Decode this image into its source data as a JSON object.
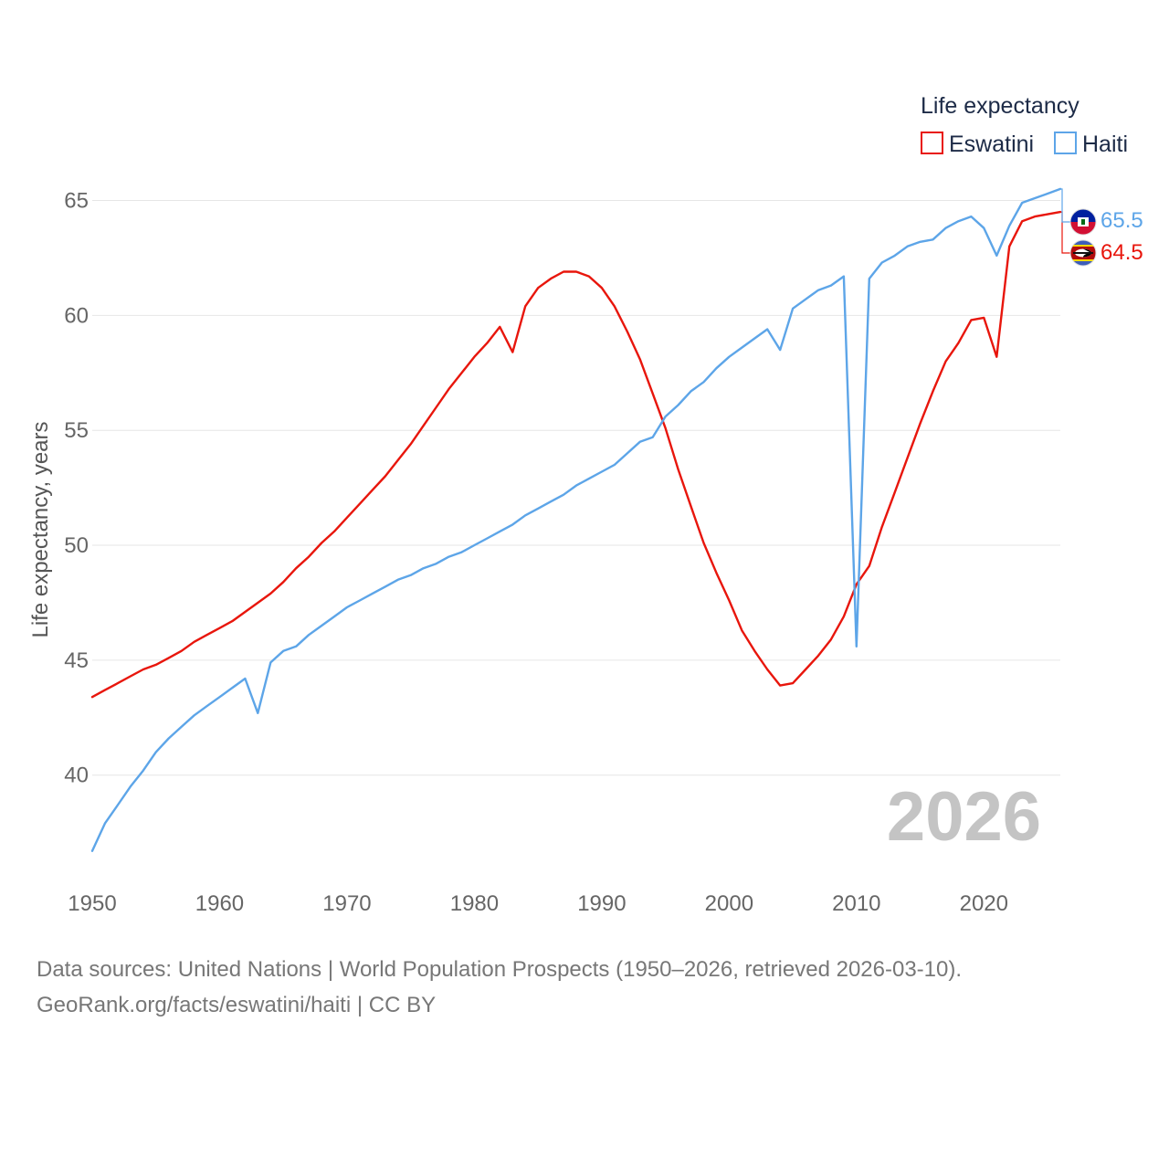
{
  "chart_data": {
    "type": "line",
    "title": "",
    "legend_title": "Life expectancy",
    "ylabel": "Life expectancy, years",
    "xlabel": "",
    "xlim": [
      1950,
      2026
    ],
    "ylim": [
      35.5,
      68
    ],
    "x_ticks": [
      1950,
      1960,
      1970,
      1980,
      1990,
      2000,
      2010,
      2020
    ],
    "y_ticks": [
      40,
      45,
      50,
      55,
      60,
      65
    ],
    "current_year_label": "2026",
    "x": [
      1950,
      1951,
      1952,
      1953,
      1954,
      1955,
      1956,
      1957,
      1958,
      1959,
      1960,
      1961,
      1962,
      1963,
      1964,
      1965,
      1966,
      1967,
      1968,
      1969,
      1970,
      1971,
      1972,
      1973,
      1974,
      1975,
      1976,
      1977,
      1978,
      1979,
      1980,
      1981,
      1982,
      1983,
      1984,
      1985,
      1986,
      1987,
      1988,
      1989,
      1990,
      1991,
      1992,
      1993,
      1994,
      1995,
      1996,
      1997,
      1998,
      1999,
      2000,
      2001,
      2002,
      2003,
      2004,
      2005,
      2006,
      2007,
      2008,
      2009,
      2010,
      2011,
      2012,
      2013,
      2014,
      2015,
      2016,
      2017,
      2018,
      2019,
      2020,
      2021,
      2022,
      2023,
      2024,
      2025,
      2026
    ],
    "series": [
      {
        "name": "Eswatini",
        "color": "#e8160c",
        "end_label": "64.5",
        "values": [
          43.4,
          43.7,
          44.0,
          44.3,
          44.6,
          44.8,
          45.1,
          45.4,
          45.8,
          46.1,
          46.4,
          46.7,
          47.1,
          47.5,
          47.9,
          48.4,
          49.0,
          49.5,
          50.1,
          50.6,
          51.2,
          51.8,
          52.4,
          53.0,
          53.7,
          54.4,
          55.2,
          56.0,
          56.8,
          57.5,
          58.2,
          58.8,
          59.5,
          58.4,
          60.4,
          61.2,
          61.6,
          61.9,
          61.9,
          61.7,
          61.2,
          60.4,
          59.3,
          58.1,
          56.6,
          55.1,
          53.3,
          51.7,
          50.1,
          48.8,
          47.6,
          46.3,
          45.4,
          44.6,
          43.9,
          44.0,
          44.6,
          45.2,
          45.9,
          46.9,
          48.3,
          49.1,
          50.8,
          52.3,
          53.8,
          55.3,
          56.7,
          58.0,
          58.8,
          59.8,
          59.9,
          58.2,
          63.0,
          64.1,
          64.3,
          64.4,
          64.5
        ]
      },
      {
        "name": "Haiti",
        "color": "#5da5e8",
        "end_label": "65.5",
        "values": [
          36.7,
          37.9,
          38.7,
          39.5,
          40.2,
          41.0,
          41.6,
          42.1,
          42.6,
          43.0,
          43.4,
          43.8,
          44.2,
          42.7,
          44.9,
          45.4,
          45.6,
          46.1,
          46.5,
          46.9,
          47.3,
          47.6,
          47.9,
          48.2,
          48.5,
          48.7,
          49.0,
          49.2,
          49.5,
          49.7,
          50.0,
          50.3,
          50.6,
          50.9,
          51.3,
          51.6,
          51.9,
          52.2,
          52.6,
          52.9,
          53.2,
          53.5,
          54.0,
          54.5,
          54.7,
          55.6,
          56.1,
          56.7,
          57.1,
          57.7,
          58.2,
          58.6,
          59.0,
          59.4,
          58.5,
          60.3,
          60.7,
          61.1,
          61.3,
          61.7,
          45.6,
          61.6,
          62.3,
          62.6,
          63.0,
          63.2,
          63.3,
          63.8,
          64.1,
          64.3,
          63.8,
          62.6,
          63.9,
          64.9,
          65.1,
          65.3,
          65.5
        ]
      }
    ]
  },
  "footer": {
    "source_line": "Data sources: United Nations | World Population Prospects (1950–2026, retrieved 2026-03-10).",
    "credit_line": "GeoRank.org/facts/eswatini/haiti | CC BY"
  }
}
